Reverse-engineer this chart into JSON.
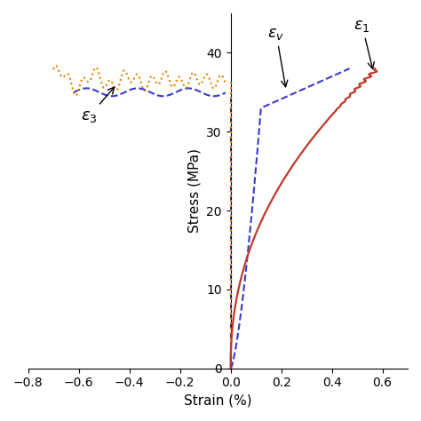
{
  "xlabel": "Strain (%)",
  "ylabel": "Stress (MPa)",
  "xlim": [
    -0.8,
    0.7
  ],
  "ylim": [
    0,
    45
  ],
  "xticks": [
    -0.8,
    -0.6,
    -0.4,
    -0.2,
    0.0,
    0.2,
    0.4,
    0.6
  ],
  "yticks": [
    0,
    10,
    20,
    30,
    40
  ],
  "color_eps1": "#c0392b",
  "color_eps3": "#e67e00",
  "color_epsv": "#3a3acc",
  "background": "#ffffff"
}
